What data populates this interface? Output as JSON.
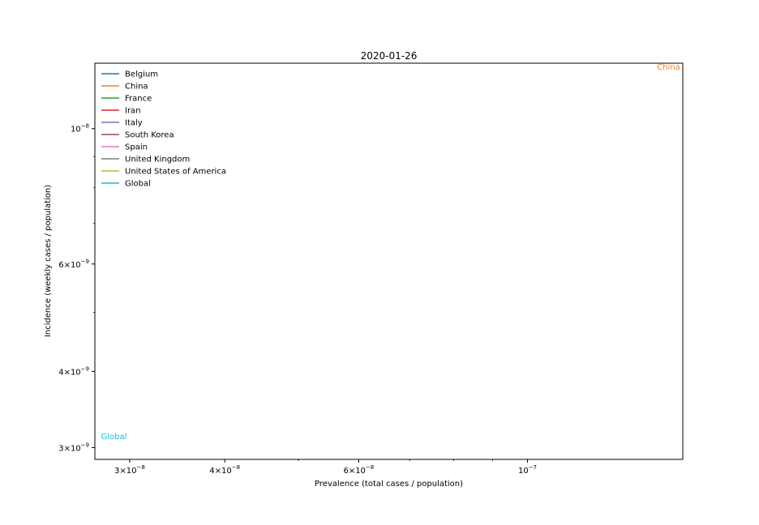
{
  "chart_data": {
    "type": "line",
    "title": "2020-01-26",
    "xlabel": "Prevalence (total cases / population)",
    "ylabel": "Incidence (weekly cases / population)",
    "xscale": "log",
    "yscale": "log",
    "xlim": [
      2.7e-08,
      1.6e-07
    ],
    "ylim": [
      2.87e-09,
      1.28e-08
    ],
    "grid": false,
    "legend_position": "top-left",
    "x_ticks": [
      {
        "value": 3e-08,
        "mant": "3",
        "exp": "−8"
      },
      {
        "value": 4e-08,
        "mant": "4",
        "exp": "−8"
      },
      {
        "value": 6e-08,
        "mant": "6",
        "exp": "−8"
      },
      {
        "value": 1e-07,
        "mant": "",
        "exp": "−7"
      }
    ],
    "y_ticks": [
      {
        "value": 3e-09,
        "mant": "3",
        "exp": "−9"
      },
      {
        "value": 4e-09,
        "mant": "4",
        "exp": "−9"
      },
      {
        "value": 6e-09,
        "mant": "6",
        "exp": "−9"
      },
      {
        "value": 1e-08,
        "mant": "",
        "exp": "−8"
      }
    ],
    "x_minor_ticks": [
      5e-08,
      7e-08,
      8e-08,
      9e-08
    ],
    "y_minor_ticks": [
      5e-09,
      7e-09,
      8e-09,
      9e-09
    ],
    "series": [
      {
        "name": "Belgium",
        "color": "#1f77b4"
      },
      {
        "name": "China",
        "color": "#ff7f0e"
      },
      {
        "name": "France",
        "color": "#2ca02c"
      },
      {
        "name": "Iran",
        "color": "#d62728"
      },
      {
        "name": "Italy",
        "color": "#9467bd"
      },
      {
        "name": "South Korea",
        "color": "#8c564b"
      },
      {
        "name": "Spain",
        "color": "#e377c2"
      },
      {
        "name": "United Kingdom",
        "color": "#7f7f7f"
      },
      {
        "name": "United States of America",
        "color": "#bcbd22"
      },
      {
        "name": "Global",
        "color": "#17becf"
      }
    ],
    "annotations": [
      {
        "text": "China",
        "color": "#ff7f0e",
        "x": 1.48e-07,
        "y": 1.25e-08
      },
      {
        "text": "Global",
        "color": "#17becf",
        "x": 2.75e-08,
        "y": 3.1e-09
      }
    ]
  }
}
